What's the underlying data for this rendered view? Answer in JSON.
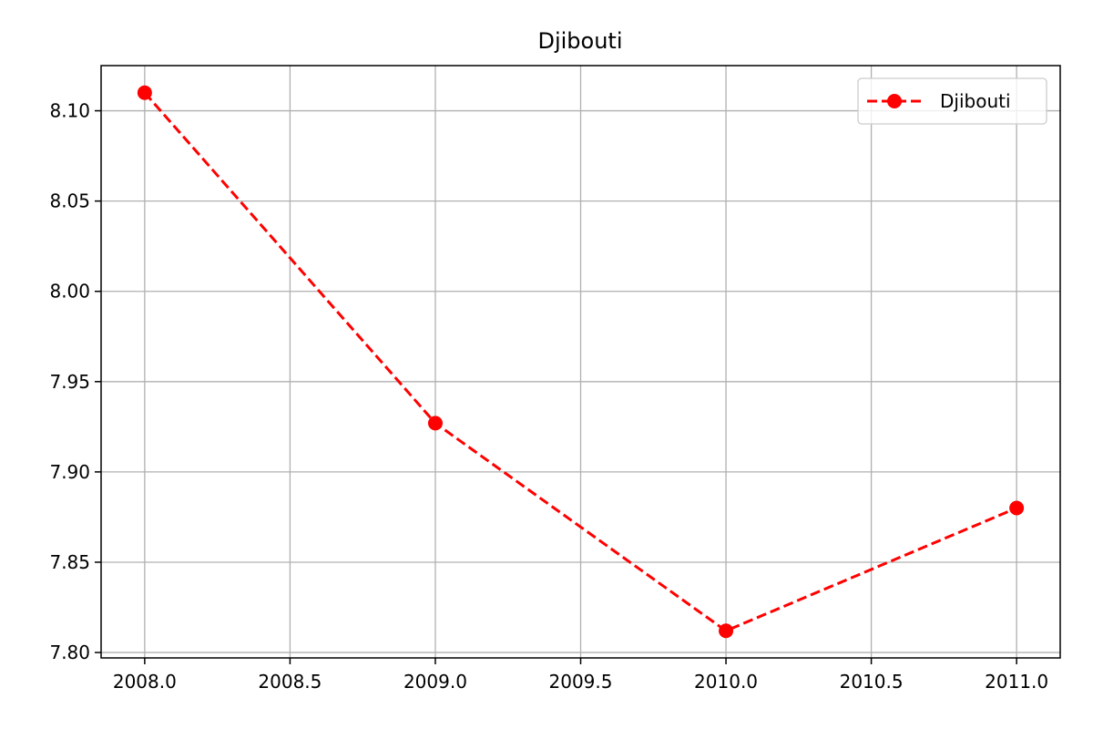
{
  "chart_data": {
    "type": "line",
    "title": "Djibouti",
    "xlabel": "",
    "ylabel": "",
    "x": [
      2008,
      2009,
      2010,
      2011
    ],
    "series": [
      {
        "name": "Djibouti",
        "values": [
          8.11,
          7.927,
          7.812,
          7.88
        ],
        "color": "#ff0000",
        "line_style": "dashed",
        "marker": "circle"
      }
    ],
    "xlim": [
      2007.85,
      2011.15
    ],
    "ylim": [
      7.797,
      8.125
    ],
    "x_ticks": [
      2008.0,
      2008.5,
      2009.0,
      2009.5,
      2010.0,
      2010.5,
      2011.0
    ],
    "x_tick_labels": [
      "2008.0",
      "2008.5",
      "2009.0",
      "2009.5",
      "2010.0",
      "2010.5",
      "2011.0"
    ],
    "y_ticks": [
      7.8,
      7.85,
      7.9,
      7.95,
      8.0,
      8.05,
      8.1
    ],
    "y_tick_labels": [
      "7.80",
      "7.85",
      "7.90",
      "7.95",
      "8.00",
      "8.05",
      "8.10"
    ],
    "grid": true,
    "legend_position": "top-right"
  }
}
